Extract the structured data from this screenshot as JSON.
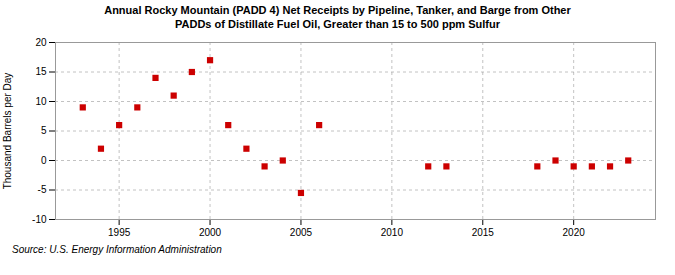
{
  "chart_data": {
    "type": "scatter",
    "title": "Annual Rocky Mountain (PADD 4) Net Receipts by Pipeline, Tanker, and Barge from Other\nPADDs of Distillate Fuel Oil, Greater than 15 to 500 ppm Sulfur",
    "ylabel": "Thousand Barrels per Day",
    "source": "Source:  U.S. Energy Information Administration",
    "x": [
      1993,
      1994,
      1995,
      1996,
      1997,
      1998,
      1999,
      2000,
      2001,
      2002,
      2003,
      2004,
      2005,
      2006,
      2012,
      2013,
      2018,
      2019,
      2020,
      2021,
      2022,
      2023
    ],
    "values": [
      9,
      2,
      6,
      9,
      14,
      11,
      15,
      17,
      6,
      2,
      -1,
      0,
      -5.5,
      6,
      -1,
      -1,
      -1,
      0,
      -1,
      -1,
      -1,
      0
    ],
    "color": "#cc0000",
    "marker": "square",
    "xlim": [
      1991.5,
      2024.5
    ],
    "xticks": [
      1995,
      2000,
      2005,
      2010,
      2015,
      2020
    ],
    "ylim": [
      -10,
      20
    ],
    "yticks": [
      -10,
      -5,
      0,
      5,
      10,
      15,
      20
    ],
    "grid": true
  }
}
